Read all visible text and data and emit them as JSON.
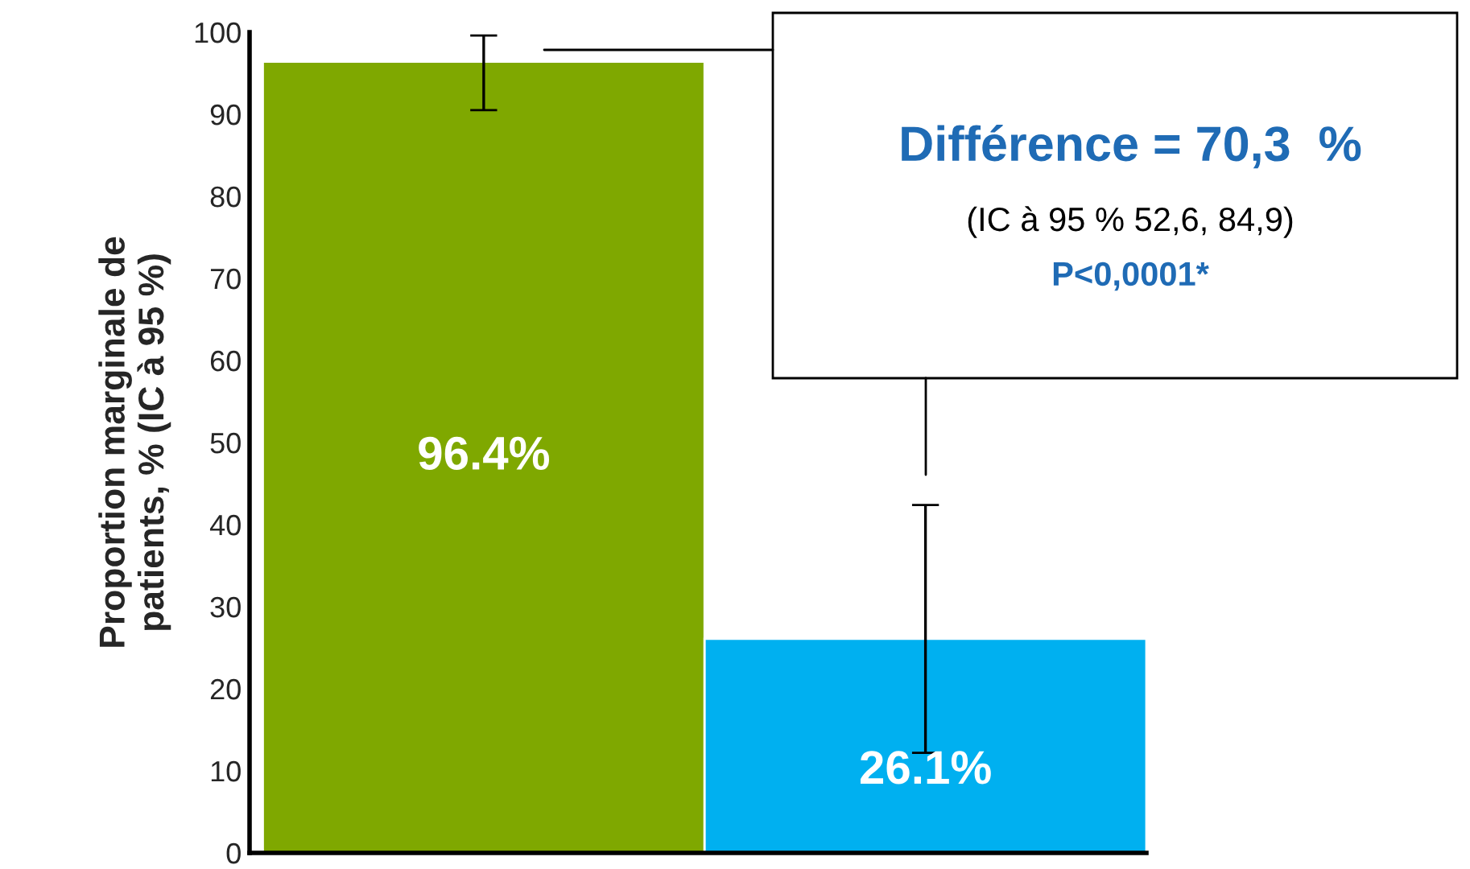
{
  "chart_data": {
    "type": "bar",
    "ylabel": "Proportion marginale de\npatients, % (IC à 95 %)",
    "categories": [
      null,
      null
    ],
    "values": [
      96.4,
      26.1
    ],
    "colors": [
      "#7fa800",
      "#00b0f0"
    ],
    "errors": [
      [
        90.5,
        99.6
      ],
      [
        12.2,
        42.4
      ]
    ],
    "value_labels": [
      "96.4%",
      "26.1%"
    ],
    "ylim": [
      0,
      100
    ],
    "yticks": [
      0,
      10,
      20,
      30,
      40,
      50,
      60,
      70,
      80,
      90,
      100
    ],
    "grid": false,
    "legend": false,
    "annotations": [
      "Différence = 70,3  %",
      "(IC à 95 % 52,6, 84,9)",
      "P<0,0001*"
    ]
  }
}
